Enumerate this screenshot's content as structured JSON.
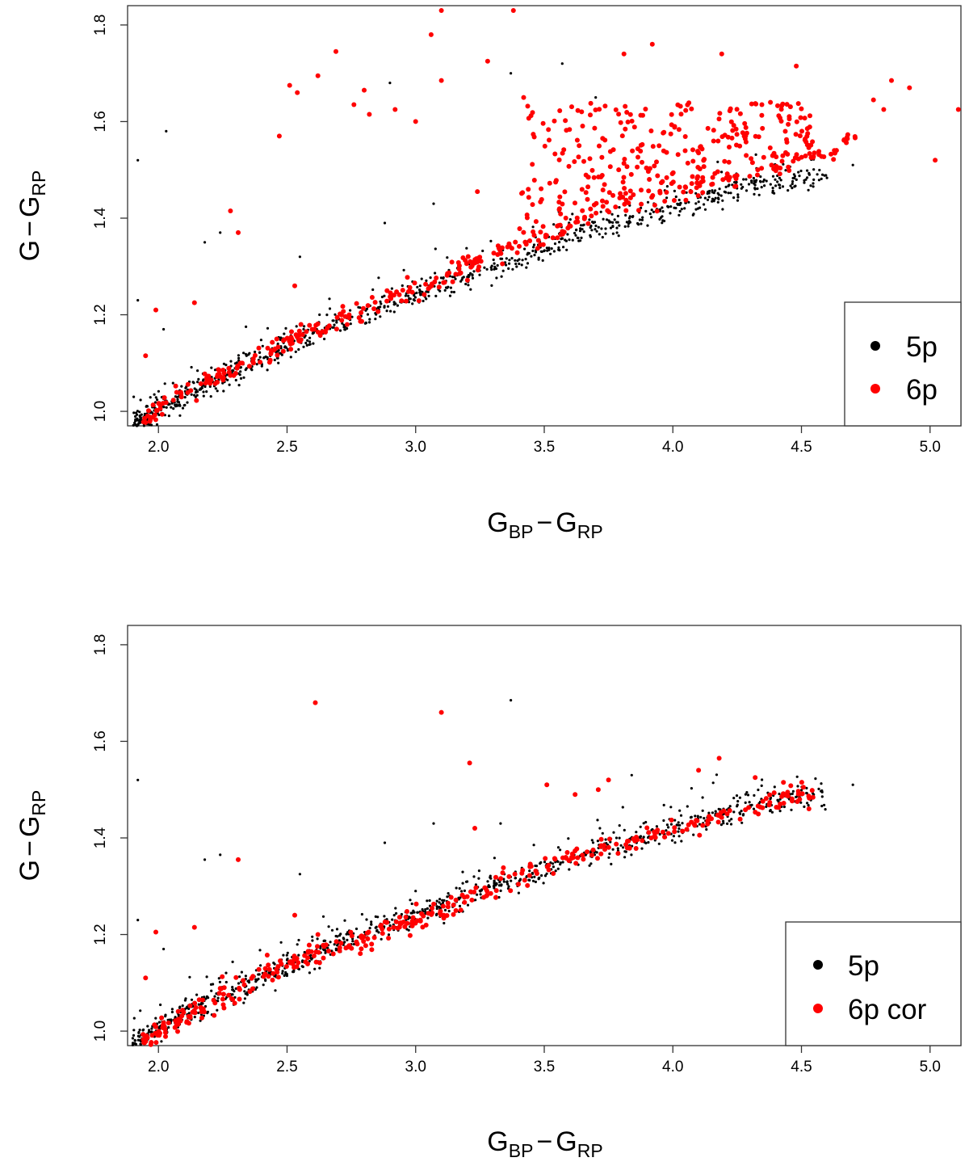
{
  "chart_data": [
    {
      "type": "scatter",
      "title": "",
      "xlabel": {
        "main": "G",
        "sub1": "BP",
        "minus": "−",
        "main2": "G",
        "sub2": "RP"
      },
      "ylabel": {
        "main": "G",
        "minus": "−",
        "main2": "G",
        "sub": "RP"
      },
      "xlim": [
        1.88,
        5.12
      ],
      "ylim": [
        0.97,
        1.84
      ],
      "xticks": [
        "2.0",
        "2.5",
        "3.0",
        "3.5",
        "4.0",
        "4.5",
        "5.0"
      ],
      "yticks": [
        "1.0",
        "1.2",
        "1.4",
        "1.6",
        "1.8"
      ],
      "legend": {
        "position": "bottom-right",
        "entries": [
          "5p",
          "6p"
        ]
      },
      "series": [
        {
          "name": "5p",
          "color": "#000000",
          "marker_size": 1.6,
          "trend": [
            [
              1.9,
              0.975
            ],
            [
              2.2,
              1.06
            ],
            [
              2.5,
              1.135
            ],
            [
              2.8,
              1.2
            ],
            [
              3.1,
              1.26
            ],
            [
              3.4,
              1.315
            ],
            [
              3.7,
              1.375
            ],
            [
              4.0,
              1.42
            ],
            [
              4.3,
              1.465
            ],
            [
              4.6,
              1.49
            ]
          ],
          "n_trend_points": 900,
          "trend_x_range": [
            1.9,
            4.6
          ],
          "scatter_sd": 0.013,
          "outliers": [
            [
              1.92,
              1.52
            ],
            [
              2.03,
              1.58
            ],
            [
              2.18,
              1.35
            ],
            [
              2.24,
              1.37
            ],
            [
              2.55,
              1.32
            ],
            [
              2.88,
              1.39
            ],
            [
              2.9,
              1.68
            ],
            [
              3.07,
              1.43
            ],
            [
              3.37,
              1.7
            ],
            [
              3.57,
              1.72
            ],
            [
              3.7,
              1.65
            ],
            [
              4.7,
              1.51
            ],
            [
              2.02,
              1.17
            ],
            [
              1.92,
              1.23
            ]
          ]
        },
        {
          "name": "6p",
          "color": "#ff0000",
          "marker_size": 3.0,
          "trend": [
            [
              1.94,
              0.98
            ],
            [
              2.2,
              1.065
            ],
            [
              2.5,
              1.14
            ],
            [
              2.8,
              1.21
            ],
            [
              3.1,
              1.275
            ],
            [
              3.4,
              1.345
            ],
            [
              3.7,
              1.41
            ],
            [
              4.0,
              1.455
            ],
            [
              4.3,
              1.5
            ],
            [
              4.6,
              1.53
            ],
            [
              4.7,
              1.57
            ]
          ],
          "n_trend_points": 360,
          "trend_x_range": [
            1.94,
            4.72
          ],
          "scatter_sd": 0.012,
          "cloud": {
            "n": 260,
            "x_range": [
              3.4,
              4.55
            ],
            "y_range": [
              1.43,
              1.63
            ]
          },
          "outliers": [
            [
              1.95,
              1.115
            ],
            [
              1.99,
              1.21
            ],
            [
              2.14,
              1.225
            ],
            [
              2.28,
              1.415
            ],
            [
              2.31,
              1.37
            ],
            [
              2.47,
              1.57
            ],
            [
              2.51,
              1.675
            ],
            [
              2.54,
              1.66
            ],
            [
              2.62,
              1.695
            ],
            [
              2.69,
              1.745
            ],
            [
              2.76,
              1.635
            ],
            [
              2.8,
              1.665
            ],
            [
              2.82,
              1.615
            ],
            [
              2.92,
              1.625
            ],
            [
              3.0,
              1.6
            ],
            [
              3.06,
              1.78
            ],
            [
              3.1,
              1.685
            ],
            [
              3.38,
              1.83
            ],
            [
              3.1,
              1.83
            ],
            [
              3.28,
              1.725
            ],
            [
              3.42,
              1.65
            ],
            [
              3.81,
              1.74
            ],
            [
              3.92,
              1.76
            ],
            [
              4.19,
              1.74
            ],
            [
              4.48,
              1.715
            ],
            [
              4.78,
              1.645
            ],
            [
              4.82,
              1.625
            ],
            [
              4.85,
              1.685
            ],
            [
              4.92,
              1.67
            ],
            [
              5.02,
              1.52
            ],
            [
              5.11,
              1.625
            ],
            [
              2.53,
              1.26
            ],
            [
              3.24,
              1.455
            ]
          ]
        }
      ]
    },
    {
      "type": "scatter",
      "title": "",
      "xlabel": {
        "main": "G",
        "sub1": "BP",
        "minus": "−",
        "main2": "G",
        "sub2": "RP"
      },
      "ylabel": {
        "main": "G",
        "minus": "−",
        "main2": "G",
        "sub": "RP"
      },
      "xlim": [
        1.88,
        5.12
      ],
      "ylim": [
        0.97,
        1.84
      ],
      "xticks": [
        "2.0",
        "2.5",
        "3.0",
        "3.5",
        "4.0",
        "4.5",
        "5.0"
      ],
      "yticks": [
        "1.0",
        "1.2",
        "1.4",
        "1.6",
        "1.8"
      ],
      "legend": {
        "position": "bottom-right",
        "entries": [
          "5p",
          "6p cor"
        ]
      },
      "series": [
        {
          "name": "5p",
          "color": "#000000",
          "marker_size": 1.6,
          "trend": [
            [
              1.9,
              0.975
            ],
            [
              2.2,
              1.06
            ],
            [
              2.5,
              1.135
            ],
            [
              2.8,
              1.2
            ],
            [
              3.1,
              1.26
            ],
            [
              3.4,
              1.315
            ],
            [
              3.7,
              1.375
            ],
            [
              4.0,
              1.42
            ],
            [
              4.3,
              1.465
            ],
            [
              4.6,
              1.49
            ]
          ],
          "n_trend_points": 900,
          "trend_x_range": [
            1.9,
            4.6
          ],
          "scatter_sd": 0.013,
          "outliers": [
            [
              1.92,
              1.52
            ],
            [
              2.18,
              1.355
            ],
            [
              2.24,
              1.365
            ],
            [
              2.55,
              1.325
            ],
            [
              2.88,
              1.39
            ],
            [
              3.07,
              1.43
            ],
            [
              3.37,
              1.685
            ],
            [
              3.33,
              1.43
            ],
            [
              3.84,
              1.53
            ],
            [
              4.7,
              1.51
            ],
            [
              2.02,
              1.17
            ],
            [
              1.92,
              1.23
            ]
          ]
        },
        {
          "name": "6p cor",
          "color": "#ff0000",
          "marker_size": 3.0,
          "trend": [
            [
              1.94,
              0.98
            ],
            [
              2.2,
              1.06
            ],
            [
              2.5,
              1.135
            ],
            [
              2.8,
              1.195
            ],
            [
              3.1,
              1.255
            ],
            [
              3.4,
              1.32
            ],
            [
              3.7,
              1.375
            ],
            [
              4.0,
              1.42
            ],
            [
              4.3,
              1.46
            ],
            [
              4.56,
              1.5
            ]
          ],
          "n_trend_points": 380,
          "trend_x_range": [
            1.94,
            4.56
          ],
          "scatter_sd": 0.012,
          "outliers": [
            [
              1.95,
              1.11
            ],
            [
              1.99,
              1.205
            ],
            [
              2.14,
              1.215
            ],
            [
              2.31,
              1.355
            ],
            [
              2.61,
              1.68
            ],
            [
              3.1,
              1.66
            ],
            [
              3.21,
              1.555
            ],
            [
              3.23,
              1.42
            ],
            [
              3.51,
              1.51
            ],
            [
              3.75,
              1.52
            ],
            [
              3.71,
              1.5
            ],
            [
              4.1,
              1.54
            ],
            [
              4.18,
              1.565
            ],
            [
              4.32,
              1.525
            ],
            [
              4.43,
              1.515
            ],
            [
              3.62,
              1.49
            ],
            [
              2.53,
              1.24
            ],
            [
              2.62,
              1.2
            ]
          ]
        }
      ]
    }
  ]
}
